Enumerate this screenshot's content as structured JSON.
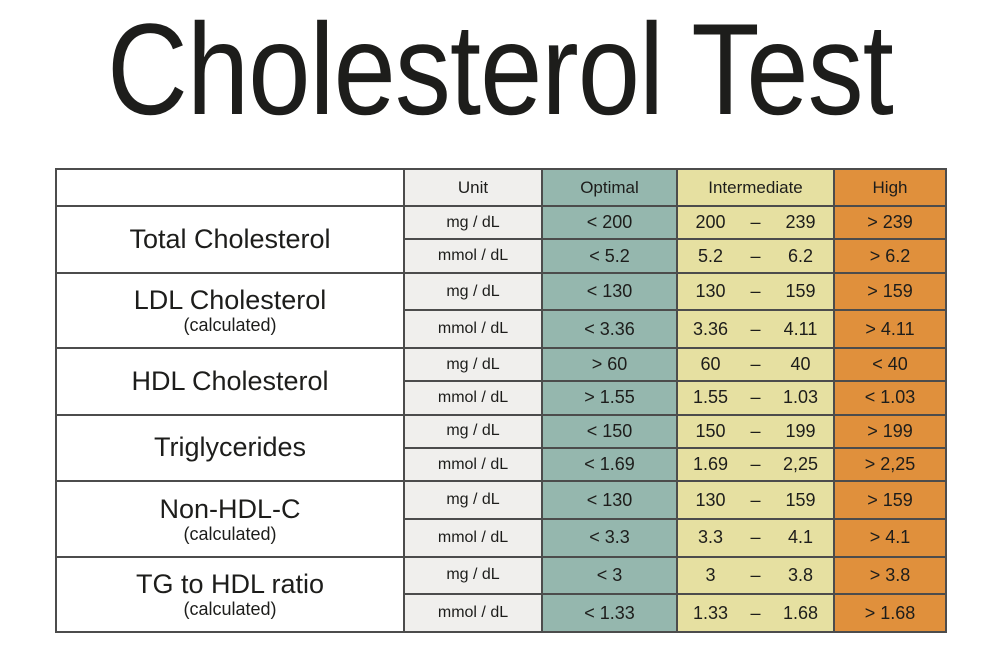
{
  "colors": {
    "optimal": "#95b7ae",
    "intermediate": "#e6e0a1",
    "high": "#e0903c",
    "unit_bg": "#f0efed",
    "border": "#4c4c4c",
    "text": "#1d1d1b",
    "background": "#ffffff"
  },
  "chart_data": {
    "type": "table",
    "title": "Cholesterol Test",
    "dash": "–",
    "headers": {
      "name": "",
      "unit": "Unit",
      "optimal": "Optimal",
      "intermediate": "Intermediate",
      "high": "High"
    },
    "groups": [
      {
        "name": "Total Cholesterol",
        "note": "",
        "rows": [
          {
            "unit": "mg / dL",
            "optimal": "< 200",
            "lo": "200",
            "hi": "239",
            "high": "> 239"
          },
          {
            "unit": "mmol / dL",
            "optimal": "< 5.2",
            "lo": "5.2",
            "hi": "6.2",
            "high": "> 6.2"
          }
        ]
      },
      {
        "name": "LDL Cholesterol",
        "note": "(calculated)",
        "rows": [
          {
            "unit": "mg / dL",
            "optimal": "< 130",
            "lo": "130",
            "hi": "159",
            "high": "> 159"
          },
          {
            "unit": "mmol / dL",
            "optimal": "< 3.36",
            "lo": "3.36",
            "hi": "4.11",
            "high": "> 4.11"
          }
        ]
      },
      {
        "name": "HDL Cholesterol",
        "note": "",
        "rows": [
          {
            "unit": "mg / dL",
            "optimal": "> 60",
            "lo": "60",
            "hi": "40",
            "high": "< 40"
          },
          {
            "unit": "mmol / dL",
            "optimal": "> 1.55",
            "lo": "1.55",
            "hi": "1.03",
            "high": "< 1.03"
          }
        ]
      },
      {
        "name": "Triglycerides",
        "note": "",
        "rows": [
          {
            "unit": "mg / dL",
            "optimal": "< 150",
            "lo": "150",
            "hi": "199",
            "high": "> 199"
          },
          {
            "unit": "mmol / dL",
            "optimal": "< 1.69",
            "lo": "1.69",
            "hi": "2,25",
            "high": "> 2,25"
          }
        ]
      },
      {
        "name": "Non-HDL-C",
        "note": "(calculated)",
        "rows": [
          {
            "unit": "mg / dL",
            "optimal": "< 130",
            "lo": "130",
            "hi": "159",
            "high": "> 159"
          },
          {
            "unit": "mmol / dL",
            "optimal": "< 3.3",
            "lo": "3.3",
            "hi": "4.1",
            "high": "> 4.1"
          }
        ]
      },
      {
        "name": "TG to HDL ratio",
        "note": "(calculated)",
        "rows": [
          {
            "unit": "mg / dL",
            "optimal": "< 3",
            "lo": "3",
            "hi": "3.8",
            "high": "> 3.8"
          },
          {
            "unit": "mmol / dL",
            "optimal": "< 1.33",
            "lo": "1.33",
            "hi": "1.68",
            "high": "> 1.68"
          }
        ]
      }
    ]
  }
}
